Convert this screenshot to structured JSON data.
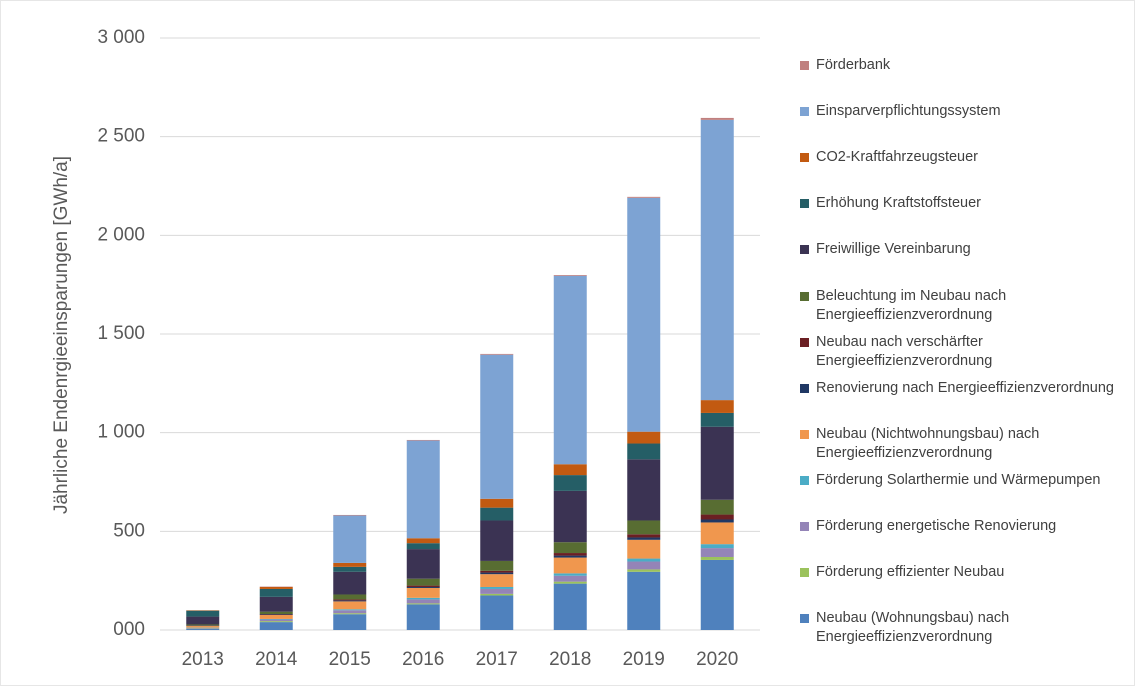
{
  "chart_data": {
    "type": "stacked_bar",
    "y_label": "Jährliche Endenrgieeinsparungen [GWh/a]",
    "categories": [
      "2013",
      "2014",
      "2015",
      "2016",
      "2017",
      "2018",
      "2019",
      "2020"
    ],
    "ylim": [
      0,
      3000
    ],
    "yticks": [
      {
        "value": 0,
        "label": "000"
      },
      500,
      {
        "value": 1000,
        "label": "1 000"
      },
      {
        "value": 1500,
        "label": "1 500"
      },
      {
        "value": 2000,
        "label": "2 000"
      },
      {
        "value": 2500,
        "label": "2 500"
      },
      {
        "value": 3000,
        "label": "3 000"
      }
    ],
    "grid": true,
    "legend": "right",
    "series": [
      {
        "name": "Förderbank",
        "color": "#c0807f",
        "values": [
          0,
          2,
          3,
          3,
          4,
          4,
          5,
          10
        ]
      },
      {
        "name": "Einsparverpflichtungssystem",
        "color": "#7da3d3",
        "values": [
          0,
          0,
          240,
          495,
          730,
          955,
          1185,
          1420
        ]
      },
      {
        "name": "CO2-Kraftfahrzeugsteuer",
        "color": "#c25a11",
        "values": [
          2,
          10,
          20,
          25,
          45,
          55,
          60,
          65
        ]
      },
      {
        "name": "Erhöhung Kraftstoffsteuer",
        "color": "#255e66",
        "values": [
          30,
          40,
          25,
          30,
          65,
          80,
          80,
          70
        ]
      },
      {
        "name": "Freiwillige Vereinbarung",
        "color": "#3b3353",
        "values": [
          40,
          75,
          115,
          150,
          205,
          260,
          310,
          370
        ]
      },
      {
        "name": "Beleuchtung im Neubau nach Energieeffizienzverordnung",
        "color": "#586d32",
        "values": [
          5,
          12,
          25,
          35,
          50,
          55,
          70,
          75
        ]
      },
      {
        "name": "Neubau nach verschärfter Energieeffizienzverordnung",
        "color": "#6b1f23",
        "values": [
          1,
          2,
          5,
          7,
          9,
          13,
          16,
          25
        ]
      },
      {
        "name": "Renovierung nach Energieeffizienzverordnung",
        "color": "#203864",
        "values": [
          2,
          3,
          5,
          5,
          8,
          10,
          12,
          15
        ]
      },
      {
        "name": "Neubau (Nichtwohnungsbau) nach Energieeffizienzverordnung",
        "color": "#f0974e",
        "values": [
          8,
          20,
          40,
          50,
          65,
          80,
          95,
          110
        ]
      },
      {
        "name": "Förderung Solarthermie und Wärmepumpen",
        "color": "#4bacc6",
        "values": [
          2,
          3,
          5,
          8,
          10,
          12,
          15,
          20
        ]
      },
      {
        "name": "Förderung energetische Renovierung",
        "color": "#9484b7",
        "values": [
          3,
          8,
          15,
          20,
          25,
          30,
          40,
          45
        ]
      },
      {
        "name": "Förderung effizienter Neubau",
        "color": "#9bc25c",
        "values": [
          2,
          5,
          5,
          5,
          8,
          10,
          12,
          15
        ]
      },
      {
        "name": "Neubau (Wohnungsbau) nach Energieeffizienzverordnung",
        "color": "#4f81bd",
        "values": [
          5,
          40,
          80,
          130,
          175,
          235,
          295,
          355
        ]
      }
    ]
  }
}
